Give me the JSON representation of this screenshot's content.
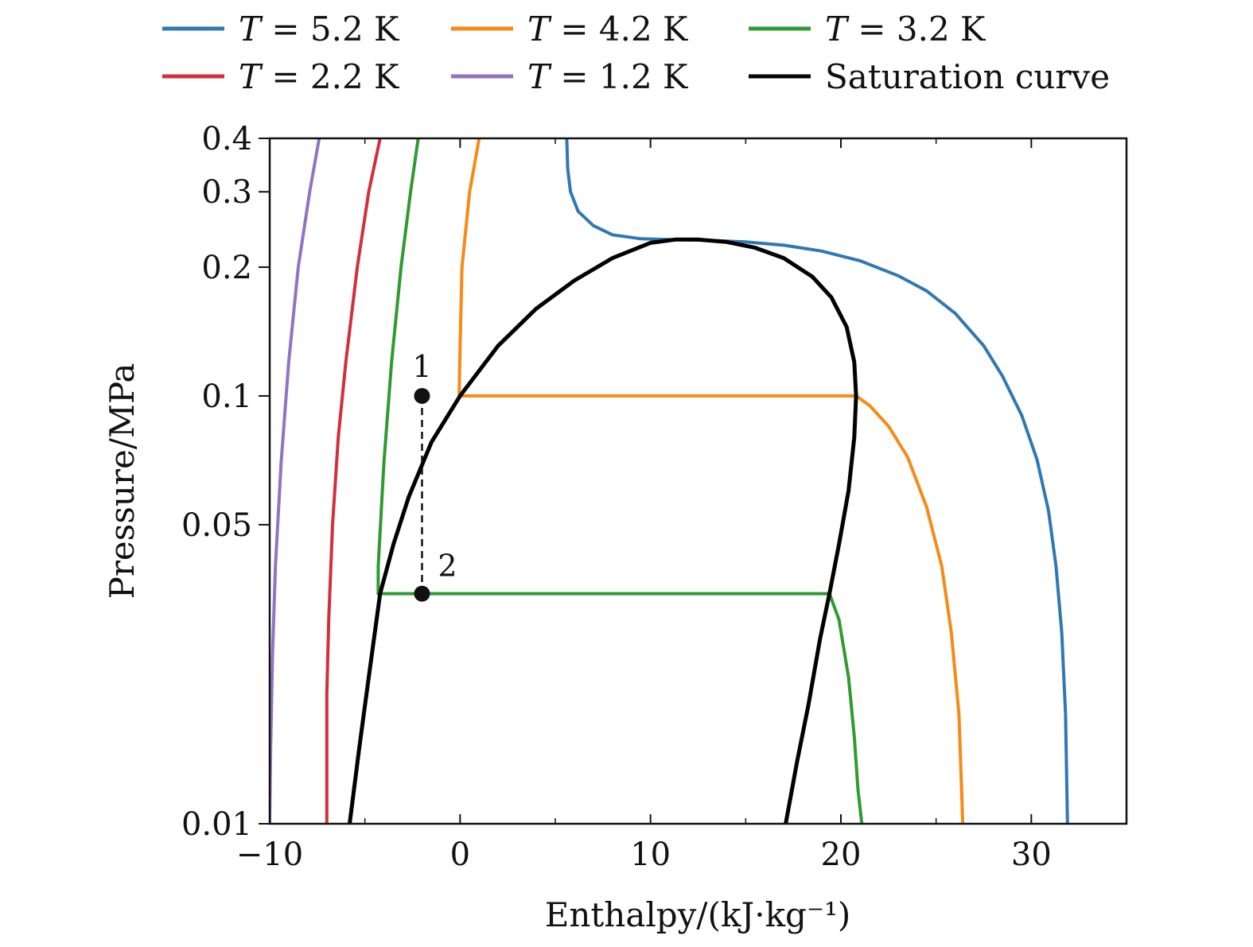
{
  "chart_data": {
    "type": "line",
    "xlabel": "Enthalpy/(kJ·kg⁻¹)",
    "ylabel": "Pressure/MPa",
    "xlim": [
      -10,
      35
    ],
    "ylim": [
      0.01,
      0.4
    ],
    "yscale": "log",
    "grid": false,
    "legend_position": "top",
    "x_ticks": [
      {
        "value": -10,
        "label": "−10"
      },
      {
        "value": 0,
        "label": "0"
      },
      {
        "value": 10,
        "label": "10"
      },
      {
        "value": 20,
        "label": "20"
      },
      {
        "value": 30,
        "label": "30"
      }
    ],
    "x_minor_ticks": [
      -5,
      5,
      15,
      25
    ],
    "y_ticks": [
      {
        "value": 0.01,
        "label": "0.01"
      },
      {
        "value": 0.05,
        "label": "0.05"
      },
      {
        "value": 0.1,
        "label": "0.1"
      },
      {
        "value": 0.2,
        "label": "0.2"
      },
      {
        "value": 0.3,
        "label": "0.3"
      },
      {
        "value": 0.4,
        "label": "0.4"
      }
    ],
    "series": [
      {
        "name": "T = 5.2 K",
        "legend_var": "T",
        "legend_rest": " = 5.2 K",
        "color": "#2f78b4",
        "points": [
          [
            5.6,
            0.4
          ],
          [
            5.65,
            0.34
          ],
          [
            5.8,
            0.3
          ],
          [
            6.2,
            0.27
          ],
          [
            7.0,
            0.25
          ],
          [
            8.0,
            0.238
          ],
          [
            9.5,
            0.233
          ],
          [
            11,
            0.232
          ],
          [
            13,
            0.231
          ],
          [
            15,
            0.229
          ],
          [
            17,
            0.225
          ],
          [
            19,
            0.218
          ],
          [
            21,
            0.207
          ],
          [
            23,
            0.191
          ],
          [
            24.5,
            0.176
          ],
          [
            26,
            0.156
          ],
          [
            27.5,
            0.131
          ],
          [
            28.5,
            0.111
          ],
          [
            29.5,
            0.09
          ],
          [
            30.3,
            0.071
          ],
          [
            30.9,
            0.054
          ],
          [
            31.3,
            0.04
          ],
          [
            31.6,
            0.028
          ],
          [
            31.8,
            0.018
          ],
          [
            31.9,
            0.01
          ]
        ]
      },
      {
        "name": "T = 4.2 K",
        "legend_var": "T",
        "legend_rest": " = 4.2 K",
        "color": "#f78a15",
        "points": [
          [
            1.0,
            0.4
          ],
          [
            0.5,
            0.3
          ],
          [
            0.1,
            0.2
          ],
          [
            0.0,
            0.13
          ],
          [
            -0.05,
            0.1
          ],
          [
            20.8,
            0.1
          ],
          [
            21.5,
            0.095
          ],
          [
            22.5,
            0.085
          ],
          [
            23.5,
            0.072
          ],
          [
            24.5,
            0.055
          ],
          [
            25.3,
            0.04
          ],
          [
            25.8,
            0.028
          ],
          [
            26.2,
            0.018
          ],
          [
            26.4,
            0.01
          ]
        ]
      },
      {
        "name": "T = 3.2 K",
        "legend_var": "T",
        "legend_rest": " = 3.2 K",
        "color": "#2f9a32",
        "points": [
          [
            -2.2,
            0.4
          ],
          [
            -2.6,
            0.3
          ],
          [
            -3.1,
            0.2
          ],
          [
            -3.6,
            0.12
          ],
          [
            -4.0,
            0.07
          ],
          [
            -4.3,
            0.04
          ],
          [
            -4.3,
            0.0345
          ],
          [
            19.4,
            0.0345
          ],
          [
            19.9,
            0.03
          ],
          [
            20.4,
            0.022
          ],
          [
            20.7,
            0.016
          ],
          [
            20.9,
            0.012
          ],
          [
            21.1,
            0.01
          ]
        ]
      },
      {
        "name": "T = 2.2 K",
        "legend_var": "T",
        "legend_rest": " = 2.2 K",
        "color": "#d22f3e",
        "points": [
          [
            -4.2,
            0.4
          ],
          [
            -4.8,
            0.3
          ],
          [
            -5.4,
            0.2
          ],
          [
            -6.0,
            0.12
          ],
          [
            -6.4,
            0.08
          ],
          [
            -6.7,
            0.05
          ],
          [
            -6.9,
            0.03
          ],
          [
            -7.0,
            0.02
          ],
          [
            -7.0,
            0.01
          ]
        ]
      },
      {
        "name": "T = 1.2 K",
        "legend_var": "T",
        "legend_rest": " = 1.2 K",
        "color": "#9173c0",
        "points": [
          [
            -7.4,
            0.4
          ],
          [
            -7.9,
            0.3
          ],
          [
            -8.5,
            0.2
          ],
          [
            -9.0,
            0.12
          ],
          [
            -9.4,
            0.07
          ],
          [
            -9.7,
            0.04
          ],
          [
            -9.85,
            0.025
          ],
          [
            -9.95,
            0.015
          ],
          [
            -10.0,
            0.01
          ]
        ]
      },
      {
        "name": "Saturation curve",
        "color": "#000000",
        "points": [
          [
            -5.8,
            0.01
          ],
          [
            -5.3,
            0.015
          ],
          [
            -4.8,
            0.022
          ],
          [
            -4.2,
            0.0345
          ],
          [
            -3.5,
            0.045
          ],
          [
            -2.7,
            0.058
          ],
          [
            -1.5,
            0.078
          ],
          [
            0.0,
            0.1
          ],
          [
            2.0,
            0.131
          ],
          [
            4.0,
            0.16
          ],
          [
            6.0,
            0.186
          ],
          [
            8.0,
            0.21
          ],
          [
            10.0,
            0.228
          ],
          [
            11.3,
            0.232
          ],
          [
            12.5,
            0.232
          ],
          [
            14.0,
            0.229
          ],
          [
            15.5,
            0.222
          ],
          [
            17.0,
            0.21
          ],
          [
            18.5,
            0.19
          ],
          [
            19.5,
            0.17
          ],
          [
            20.3,
            0.145
          ],
          [
            20.7,
            0.12
          ],
          [
            20.8,
            0.1
          ],
          [
            20.7,
            0.08
          ],
          [
            20.4,
            0.06
          ],
          [
            19.9,
            0.045
          ],
          [
            19.4,
            0.0345
          ],
          [
            18.9,
            0.027
          ],
          [
            18.3,
            0.019
          ],
          [
            17.7,
            0.014
          ],
          [
            17.1,
            0.01
          ]
        ]
      }
    ],
    "points": [
      {
        "label": "1",
        "x": -2,
        "y": 0.1
      },
      {
        "label": "2",
        "x": -2,
        "y": 0.0345
      }
    ]
  }
}
